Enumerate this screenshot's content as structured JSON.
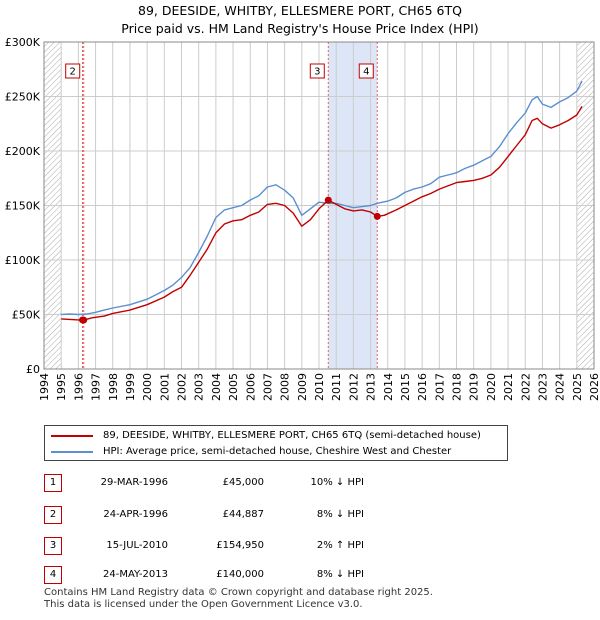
{
  "title_line1": "89, DEESIDE, WHITBY, ELLESMERE PORT, CH65 6TQ",
  "title_line2": "Price paid vs. HM Land Registry's House Price Index (HPI)",
  "colors": {
    "price": "#c00000",
    "hpi": "#5b8fd0",
    "shade": "#dde6f7",
    "grid": "#cccccc",
    "hatch": "#999999"
  },
  "chart_data": {
    "type": "line",
    "title": "89, DEESIDE, WHITBY, ELLESMERE PORT, CH65 6TQ — Price paid vs. HM Land Registry's House Price Index (HPI)",
    "xlabel": "",
    "ylabel": "",
    "xlim": [
      1994,
      2026
    ],
    "ylim": [
      0,
      300000
    ],
    "x_ticks": [
      "1994",
      "1995",
      "1996",
      "1997",
      "1998",
      "1999",
      "2000",
      "2001",
      "2002",
      "2003",
      "2004",
      "2005",
      "2006",
      "2007",
      "2008",
      "2009",
      "2010",
      "2011",
      "2012",
      "2013",
      "2014",
      "2015",
      "2016",
      "2017",
      "2018",
      "2019",
      "2020",
      "2021",
      "2022",
      "2023",
      "2024",
      "2025",
      "2026"
    ],
    "y_ticks": [
      {
        "value": 0,
        "label": "£0"
      },
      {
        "value": 50000,
        "label": "£50K"
      },
      {
        "value": 100000,
        "label": "£100K"
      },
      {
        "value": 150000,
        "label": "£150K"
      },
      {
        "value": 200000,
        "label": "£200K"
      },
      {
        "value": 250000,
        "label": "£250K"
      },
      {
        "value": 300000,
        "label": "£300K"
      }
    ],
    "shaded_region": [
      2010.54,
      2013.39
    ],
    "series": [
      {
        "name": "89, DEESIDE, WHITBY, ELLESMERE PORT, CH65 6TQ (semi-detached house)",
        "color": "#c00000",
        "x": [
          1995,
          1995.5,
          1996.0,
          1996.24,
          1996.31,
          1996.8,
          1997.5,
          1998,
          1999,
          2000,
          2001,
          2001.5,
          2002,
          2002.5,
          2003,
          2003.5,
          2004,
          2004.5,
          2005,
          2005.5,
          2006,
          2006.5,
          2007,
          2007.5,
          2008,
          2008.5,
          2009,
          2009.5,
          2010,
          2010.54,
          2011,
          2011.5,
          2012,
          2012.5,
          2013,
          2013.39,
          2013.8,
          2014.5,
          2015,
          2015.5,
          2016,
          2016.5,
          2017,
          2017.5,
          2018,
          2018.5,
          2019,
          2019.5,
          2020,
          2020.5,
          2021,
          2021.5,
          2022,
          2022.4,
          2022.7,
          2023,
          2023.5,
          2024,
          2024.5,
          2025.0,
          2025.3
        ],
        "y": [
          46000,
          45500,
          45000,
          45000,
          44887,
          47000,
          48500,
          51000,
          54000,
          59000,
          66000,
          71000,
          75000,
          86000,
          98000,
          110000,
          125000,
          133000,
          136000,
          137000,
          141000,
          144000,
          151000,
          152000,
          150000,
          143000,
          131000,
          137000,
          147000,
          154950,
          151000,
          147000,
          145000,
          146000,
          144000,
          140000,
          141000,
          146000,
          150000,
          154000,
          158000,
          161000,
          165000,
          168000,
          171000,
          172000,
          173000,
          175000,
          178000,
          185000,
          195000,
          205000,
          215000,
          228000,
          230000,
          225000,
          221000,
          224000,
          228000,
          233000,
          241000
        ]
      },
      {
        "name": "HPI: Average price, semi-detached house, Cheshire West and Chester",
        "color": "#5b8fd0",
        "x": [
          1995,
          1995.5,
          1996,
          1996.5,
          1997,
          1997.5,
          1998,
          1999,
          2000,
          2001,
          2001.5,
          2002,
          2002.5,
          2003,
          2003.5,
          2004,
          2004.5,
          2005,
          2005.5,
          2006,
          2006.5,
          2007,
          2007.5,
          2008,
          2008.5,
          2009,
          2009.5,
          2010,
          2010.54,
          2011,
          2011.5,
          2012,
          2012.5,
          2013,
          2013.39,
          2014,
          2014.5,
          2015,
          2015.5,
          2016,
          2016.5,
          2017,
          2017.5,
          2018,
          2018.5,
          2019,
          2019.5,
          2020,
          2020.5,
          2021,
          2021.5,
          2022,
          2022.4,
          2022.7,
          2023,
          2023.5,
          2024,
          2024.5,
          2025.0,
          2025.3
        ],
        "y": [
          50000,
          50500,
          50000,
          50500,
          52000,
          54000,
          56000,
          59000,
          64000,
          72000,
          77000,
          84000,
          93000,
          107000,
          122000,
          139000,
          146000,
          148000,
          150000,
          155000,
          159000,
          167000,
          169000,
          164000,
          157000,
          141000,
          147000,
          153000,
          152000,
          152000,
          150000,
          148000,
          149000,
          150000,
          152000,
          154000,
          157000,
          162000,
          165000,
          167000,
          170000,
          176000,
          178000,
          180000,
          184000,
          187000,
          191000,
          195000,
          204000,
          216000,
          226000,
          235000,
          247000,
          250000,
          243000,
          240000,
          245000,
          249000,
          255000,
          264000
        ]
      }
    ],
    "markers": [
      {
        "label": "1",
        "x": 1996.24,
        "y": 45000,
        "show_box": false
      },
      {
        "label": "2",
        "x": 1996.31,
        "y": 44887,
        "show_box": true
      },
      {
        "label": "3",
        "x": 2010.54,
        "y": 154950,
        "show_box": true
      },
      {
        "label": "4",
        "x": 2013.39,
        "y": 140000,
        "show_box": true
      }
    ]
  },
  "legend": {
    "price_label": "89, DEESIDE, WHITBY, ELLESMERE PORT, CH65 6TQ (semi-detached house)",
    "hpi_label": "HPI: Average price, semi-detached house, Cheshire West and Chester"
  },
  "transactions": [
    {
      "num": "1",
      "date": "29-MAR-1996",
      "price": "£45,000",
      "hpi": "10% ↓ HPI"
    },
    {
      "num": "2",
      "date": "24-APR-1996",
      "price": "£44,887",
      "hpi": "8% ↓ HPI"
    },
    {
      "num": "3",
      "date": "15-JUL-2010",
      "price": "£154,950",
      "hpi": "2% ↑ HPI"
    },
    {
      "num": "4",
      "date": "24-MAY-2013",
      "price": "£140,000",
      "hpi": "8% ↓ HPI"
    }
  ],
  "footer": {
    "line1": "Contains HM Land Registry data © Crown copyright and database right 2025.",
    "line2": "This data is licensed under the Open Government Licence v3.0."
  }
}
